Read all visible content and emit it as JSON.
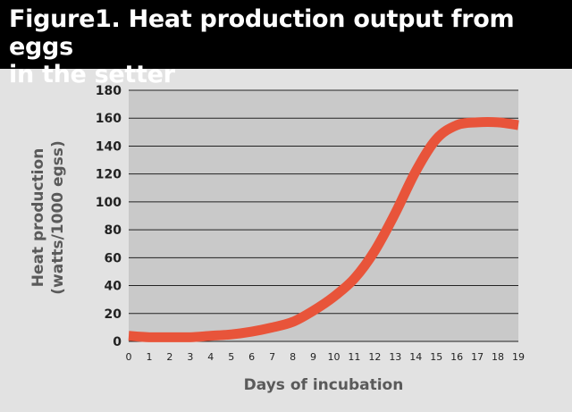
{
  "figure": {
    "title_line1": "Figure1. Heat production output from eggs",
    "title_line2": "in the setter"
  },
  "colors": {
    "title_bg": "#000000",
    "title_text": "#ffffff",
    "page_bg": "#e2e2e2",
    "plot_bg": "#c9c9c9",
    "gridline": "#222222",
    "line": "#e8543a"
  },
  "chart_data": {
    "type": "line",
    "title": "Figure1. Heat production output from eggs in the setter",
    "xlabel": "Days of incubation",
    "ylabel_line1": "Heat production",
    "ylabel_line2": "(watts/1000 egss)",
    "xlim": [
      0,
      19
    ],
    "ylim": [
      0,
      180
    ],
    "grid": true,
    "x_ticks": [
      "0",
      "1",
      "2",
      "3",
      "4",
      "5",
      "6",
      "7",
      "8",
      "9",
      "10",
      "11",
      "12",
      "13",
      "14",
      "15",
      "16",
      "17",
      "18",
      "19"
    ],
    "y_ticks": [
      "0",
      "20",
      "40",
      "60",
      "80",
      "100",
      "120",
      "140",
      "160",
      "180"
    ],
    "series": [
      {
        "x": [
          0,
          1,
          2,
          3,
          4,
          5,
          6,
          7,
          8,
          9,
          10,
          11,
          12,
          13,
          14,
          15,
          16,
          17,
          18,
          19
        ],
        "y": [
          4,
          3,
          3,
          3,
          4,
          5,
          7,
          10,
          14,
          22,
          32,
          45,
          65,
          92,
          122,
          145,
          155,
          157,
          157,
          155
        ]
      }
    ]
  }
}
